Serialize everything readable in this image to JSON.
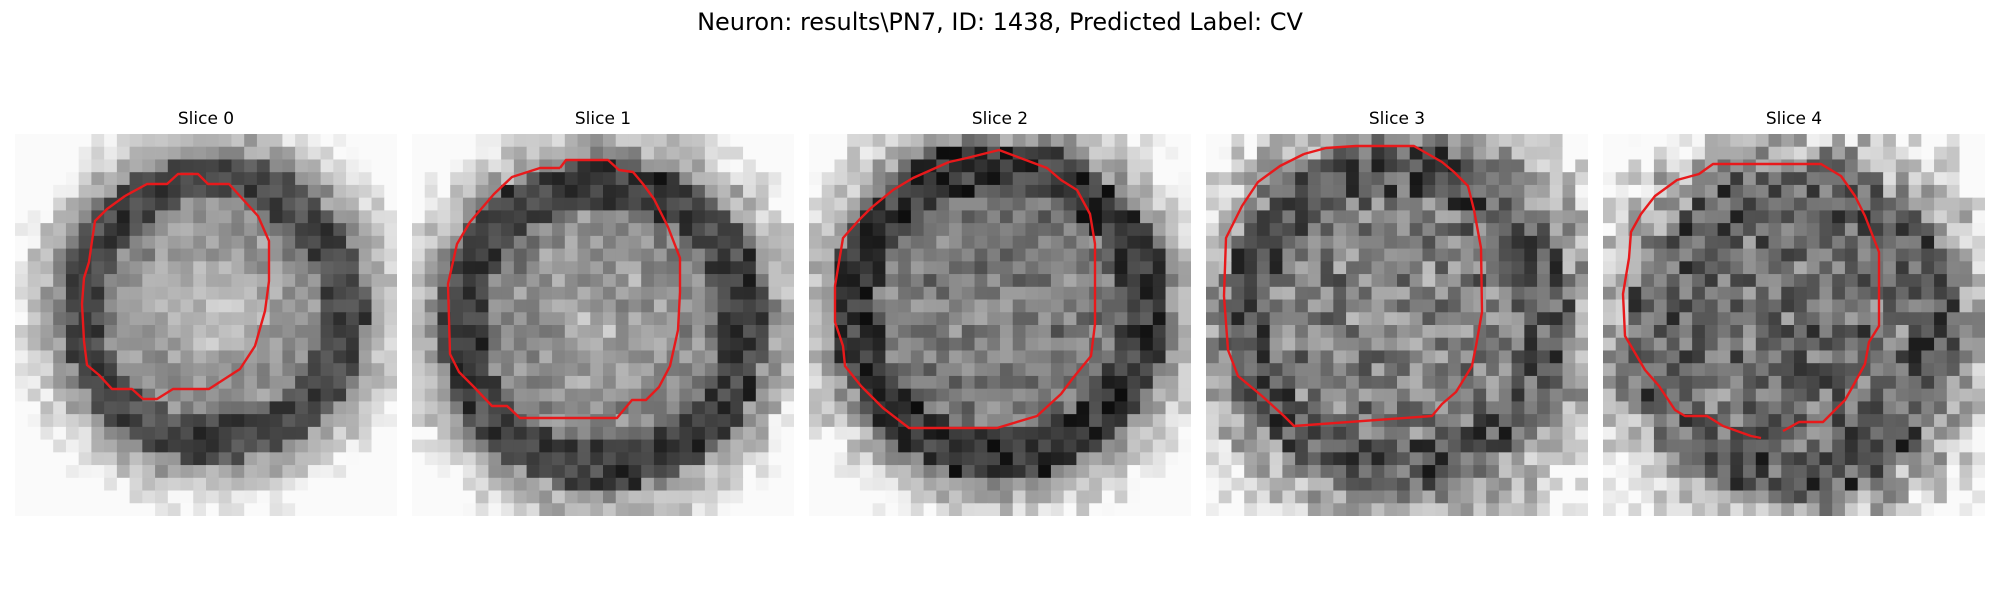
{
  "figure": {
    "title": "Neuron: results\\PN7, ID: 1438, Predicted Label: CV"
  },
  "panels": [
    {
      "title": "Slice 0"
    },
    {
      "title": "Slice 1"
    },
    {
      "title": "Slice 2"
    },
    {
      "title": "Slice 3"
    },
    {
      "title": "Slice 4"
    }
  ],
  "colors": {
    "contour": "#e8191b",
    "background": "#ffffff"
  }
}
